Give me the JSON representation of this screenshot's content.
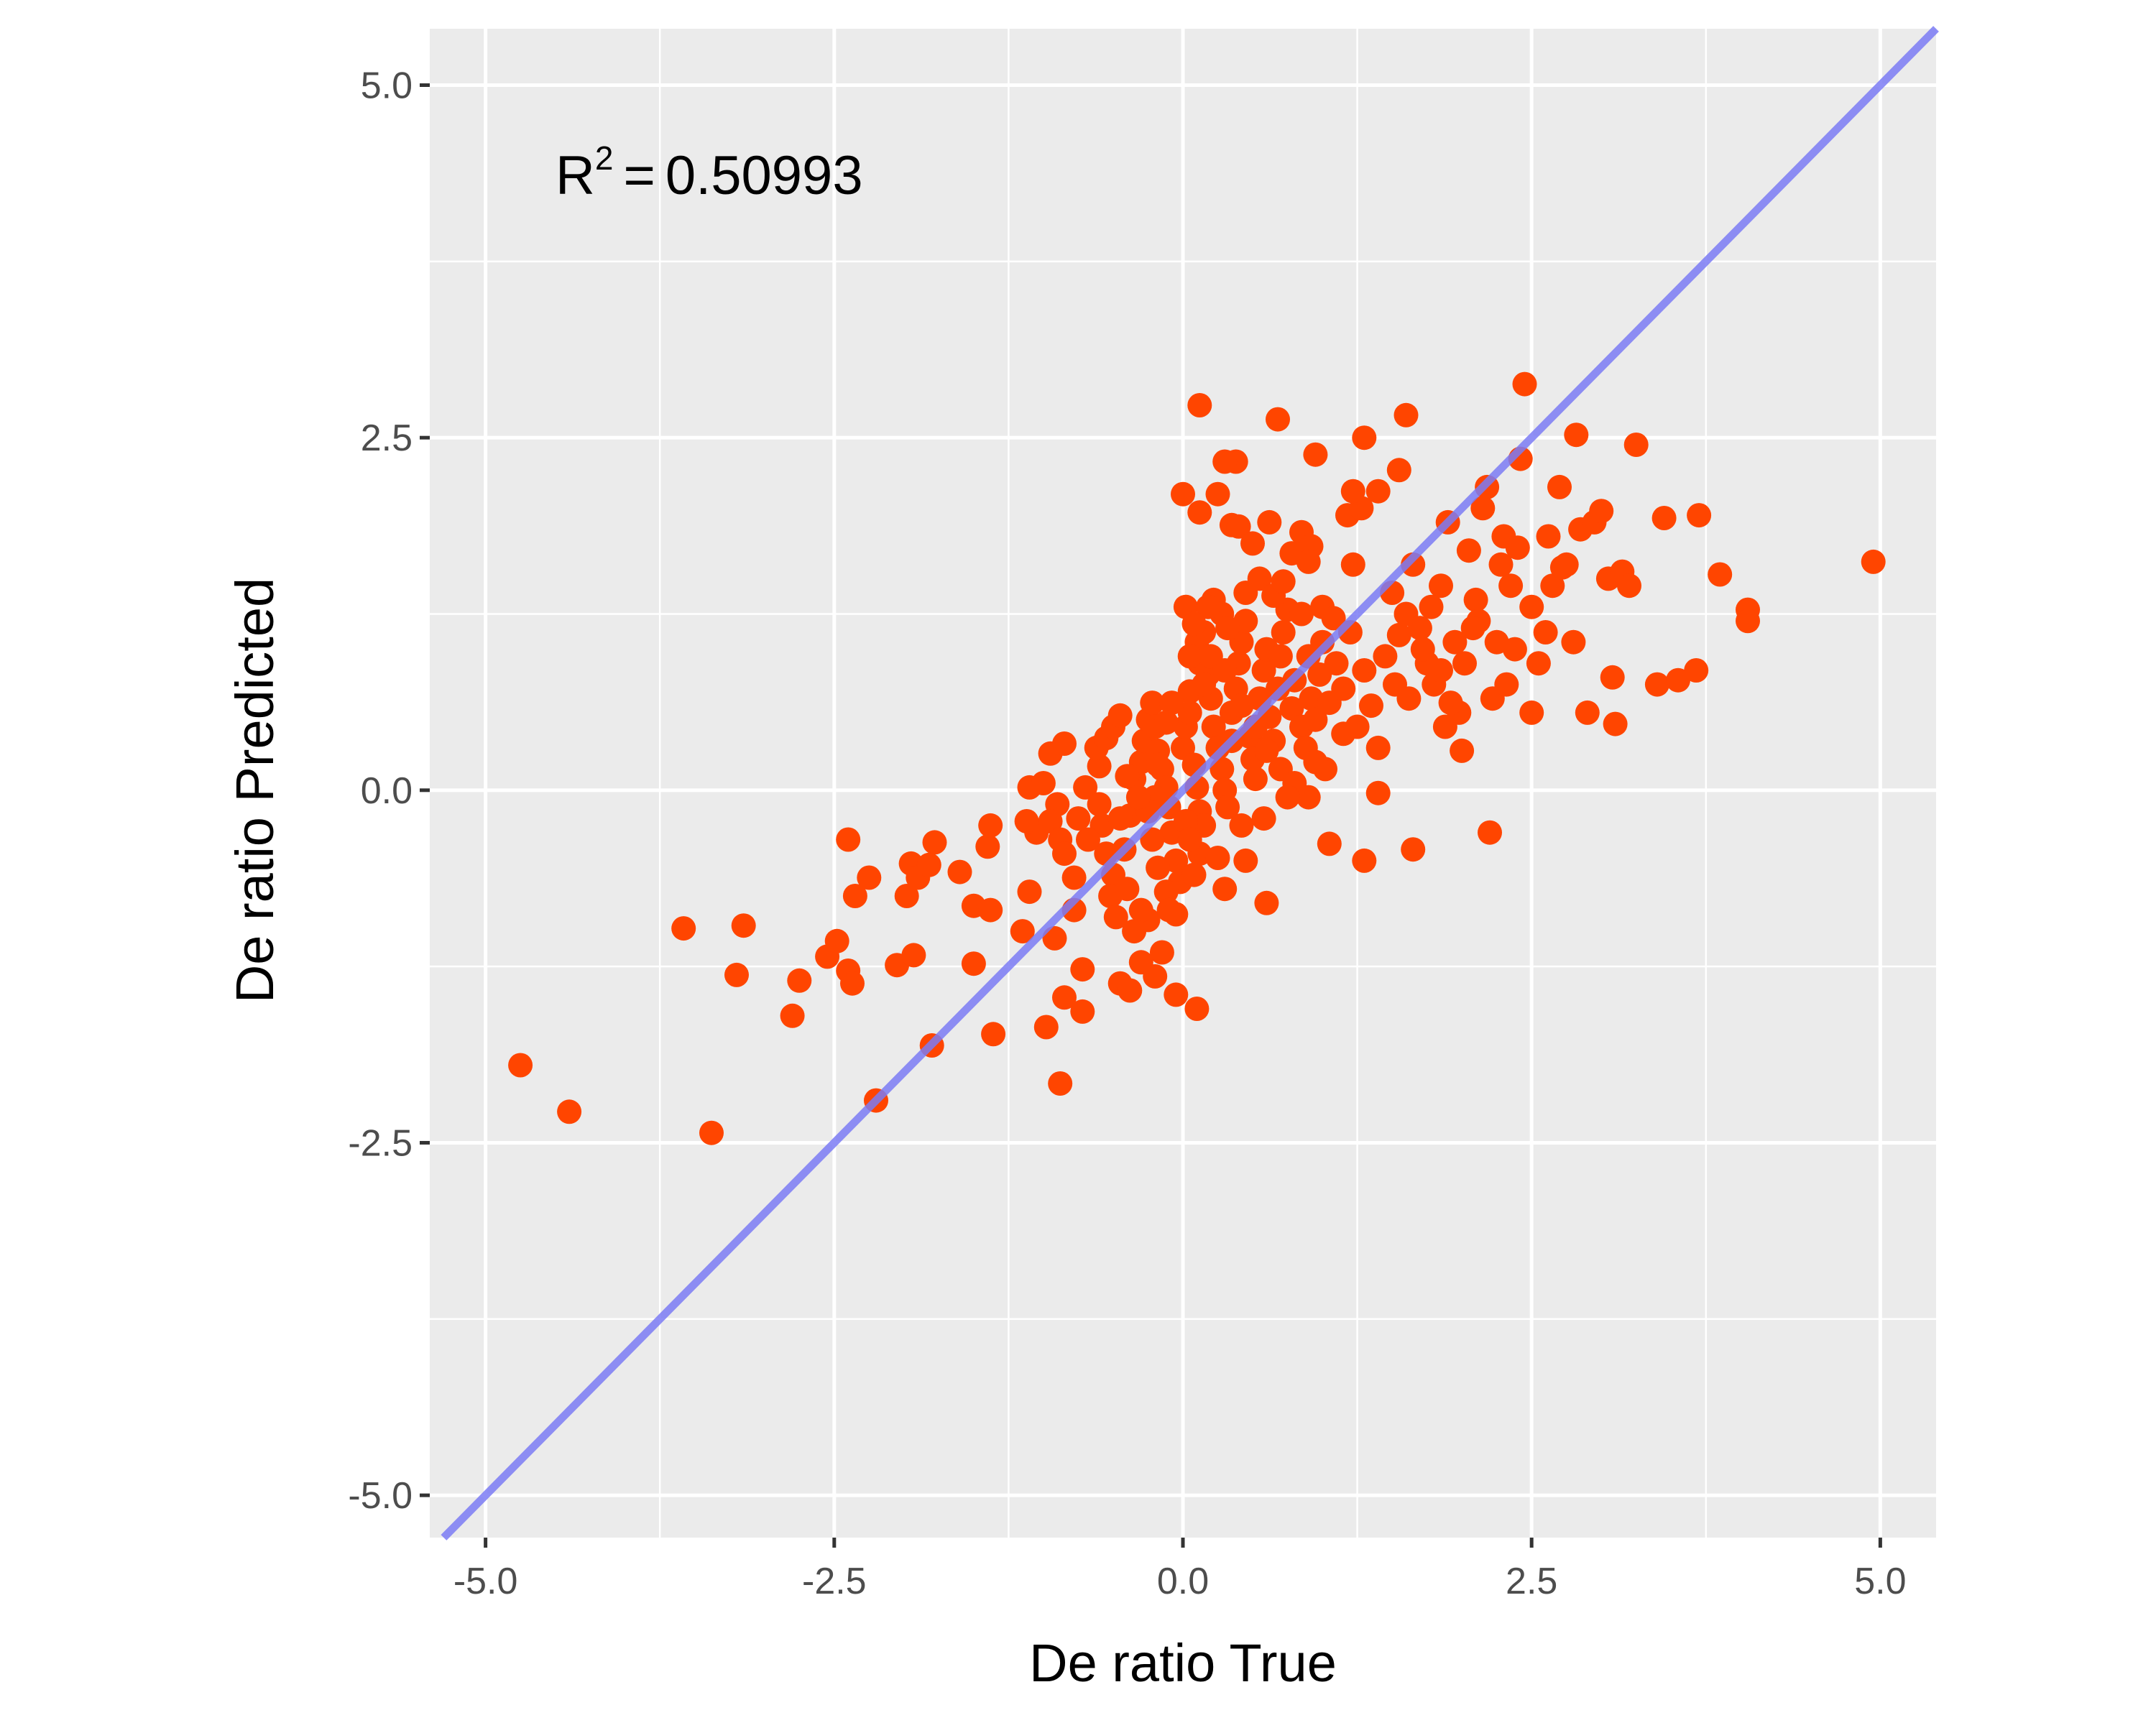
{
  "chart_data": {
    "type": "scatter",
    "title": "",
    "xlabel": "De ratio True",
    "ylabel": "De ratio Predicted",
    "xlim": [
      -5.4,
      5.4
    ],
    "ylim": [
      -5.3,
      5.4
    ],
    "x_ticks": [
      -5.0,
      -2.5,
      0.0,
      2.5,
      5.0
    ],
    "y_ticks": [
      -5.0,
      -2.5,
      0.0,
      2.5,
      5.0
    ],
    "x_tick_labels": [
      "-5.0",
      "-2.5",
      "0.0",
      "2.5",
      "5.0"
    ],
    "y_tick_labels": [
      "-5.0",
      "-2.5",
      "0.0",
      "2.5",
      "5.0"
    ],
    "grid": true,
    "panel_background": "#ebebeb",
    "grid_color": "#ffffff",
    "point_color": "#ff4500",
    "line_color": "#7b7bf4",
    "annotation": {
      "base": "R",
      "superscript": "2",
      "equals": "=",
      "value": "0.50993"
    },
    "reference_line": {
      "type": "identity",
      "slope": 1,
      "intercept": 0
    },
    "points": [
      [
        -4.75,
        -1.95
      ],
      [
        -4.4,
        -2.28
      ],
      [
        -3.38,
        -2.43
      ],
      [
        -3.58,
        -0.98
      ],
      [
        -3.15,
        -0.96
      ],
      [
        -3.2,
        -1.31
      ],
      [
        -2.75,
        -1.35
      ],
      [
        -2.8,
        -1.6
      ],
      [
        -2.55,
        -1.18
      ],
      [
        -2.48,
        -1.07
      ],
      [
        -2.4,
        -1.28
      ],
      [
        -2.37,
        -1.37
      ],
      [
        -2.2,
        -2.2
      ],
      [
        -2.35,
        -0.75
      ],
      [
        -2.25,
        -0.62
      ],
      [
        -2.4,
        -0.35
      ],
      [
        -2.05,
        -1.24
      ],
      [
        -1.93,
        -1.17
      ],
      [
        -1.98,
        -0.75
      ],
      [
        -1.95,
        -0.52
      ],
      [
        -1.9,
        -0.62
      ],
      [
        -1.78,
        -0.37
      ],
      [
        -1.82,
        -0.53
      ],
      [
        -1.6,
        -0.58
      ],
      [
        -1.5,
        -0.82
      ],
      [
        -1.38,
        -0.85
      ],
      [
        -1.4,
        -0.4
      ],
      [
        -1.38,
        -0.25
      ],
      [
        -1.5,
        -1.23
      ],
      [
        -1.36,
        -1.73
      ],
      [
        -1.8,
        -1.81
      ],
      [
        -1.15,
        -1.0
      ],
      [
        -1.1,
        -0.72
      ],
      [
        -1.05,
        -0.3
      ],
      [
        -1.12,
        -0.22
      ],
      [
        -1.1,
        0.02
      ],
      [
        -1.0,
        0.05
      ],
      [
        -0.9,
        -0.1
      ],
      [
        -0.95,
        -0.22
      ],
      [
        -0.88,
        -0.35
      ],
      [
        -0.85,
        -0.45
      ],
      [
        -0.92,
        -1.05
      ],
      [
        -0.85,
        -1.47
      ],
      [
        -0.98,
        -1.68
      ],
      [
        -0.88,
        -2.08
      ],
      [
        -0.72,
        -1.27
      ],
      [
        -0.72,
        -1.57
      ],
      [
        -0.78,
        -0.85
      ],
      [
        -0.78,
        -0.62
      ],
      [
        -0.95,
        0.26
      ],
      [
        -0.85,
        0.33
      ],
      [
        -0.7,
        0.02
      ],
      [
        -0.6,
        0.17
      ],
      [
        -0.62,
        0.3
      ],
      [
        -0.55,
        0.37
      ],
      [
        -0.5,
        0.45
      ],
      [
        -0.45,
        0.53
      ],
      [
        -0.58,
        -0.25
      ],
      [
        -0.55,
        -0.45
      ],
      [
        -0.5,
        -0.6
      ],
      [
        -0.52,
        -0.75
      ],
      [
        -0.48,
        -0.9
      ],
      [
        -0.42,
        -0.42
      ],
      [
        -0.38,
        -0.18
      ],
      [
        -0.35,
        0.08
      ],
      [
        -0.3,
        0.2
      ],
      [
        -0.28,
        0.35
      ],
      [
        -0.25,
        0.5
      ],
      [
        -0.22,
        0.62
      ],
      [
        -0.2,
        0.45
      ],
      [
        -0.18,
        0.28
      ],
      [
        -0.15,
        0.15
      ],
      [
        -0.12,
        0.02
      ],
      [
        -0.1,
        -0.12
      ],
      [
        -0.08,
        -0.3
      ],
      [
        -0.05,
        -0.5
      ],
      [
        -0.02,
        -0.65
      ],
      [
        -0.05,
        -0.88
      ],
      [
        -0.12,
        -0.72
      ],
      [
        -0.18,
        -0.55
      ],
      [
        -0.22,
        -0.35
      ],
      [
        -0.25,
        -0.92
      ],
      [
        -0.3,
        -0.85
      ],
      [
        -0.35,
        -1.0
      ],
      [
        -0.3,
        -1.22
      ],
      [
        -0.2,
        -1.32
      ],
      [
        -0.45,
        -1.37
      ],
      [
        -0.38,
        -1.42
      ],
      [
        -0.4,
        -0.7
      ],
      [
        -0.45,
        -0.2
      ],
      [
        0.0,
        0.3
      ],
      [
        0.02,
        0.45
      ],
      [
        0.05,
        0.55
      ],
      [
        0.05,
        0.7
      ],
      [
        0.08,
        0.18
      ],
      [
        0.1,
        0.02
      ],
      [
        0.12,
        -0.15
      ],
      [
        0.15,
        -0.25
      ],
      [
        0.12,
        -0.45
      ],
      [
        0.08,
        -0.6
      ],
      [
        0.1,
        1.05
      ],
      [
        0.12,
        0.9
      ],
      [
        0.15,
        1.12
      ],
      [
        0.02,
        1.3
      ],
      [
        0.05,
        0.95
      ],
      [
        0.18,
        0.82
      ],
      [
        0.2,
        0.65
      ],
      [
        0.22,
        0.45
      ],
      [
        0.25,
        0.3
      ],
      [
        0.28,
        0.15
      ],
      [
        0.3,
        0.0
      ],
      [
        0.32,
        -0.12
      ],
      [
        0.35,
        0.55
      ],
      [
        0.38,
        0.72
      ],
      [
        0.4,
        0.9
      ],
      [
        0.42,
        1.05
      ],
      [
        0.45,
        1.2
      ],
      [
        0.48,
        0.38
      ],
      [
        0.5,
        0.22
      ],
      [
        0.52,
        0.08
      ],
      [
        0.55,
        0.65
      ],
      [
        0.58,
        0.85
      ],
      [
        0.6,
        1.0
      ],
      [
        0.62,
        0.52
      ],
      [
        0.65,
        0.35
      ],
      [
        0.68,
        0.72
      ],
      [
        0.7,
        0.95
      ],
      [
        0.72,
        1.12
      ],
      [
        0.75,
        1.28
      ],
      [
        0.78,
        0.58
      ],
      [
        0.8,
        0.78
      ],
      [
        0.85,
        0.45
      ],
      [
        0.88,
        0.3
      ],
      [
        0.9,
        0.95
      ],
      [
        0.92,
        0.65
      ],
      [
        0.95,
        0.5
      ],
      [
        0.98,
        0.82
      ],
      [
        1.0,
        1.05
      ],
      [
        1.02,
        0.15
      ],
      [
        1.05,
        0.62
      ],
      [
        1.1,
        0.9
      ],
      [
        1.15,
        0.72
      ],
      [
        1.2,
        1.12
      ],
      [
        1.25,
        0.45
      ],
      [
        1.3,
        0.85
      ],
      [
        1.35,
        0.6
      ],
      [
        1.4,
        0.3
      ],
      [
        0.12,
        2.73
      ],
      [
        0.68,
        2.63
      ],
      [
        0.38,
        2.33
      ],
      [
        0.3,
        2.33
      ],
      [
        0.25,
        2.1
      ],
      [
        0.0,
        2.1
      ],
      [
        0.12,
        1.97
      ],
      [
        0.35,
        1.88
      ],
      [
        0.4,
        1.87
      ],
      [
        0.5,
        1.75
      ],
      [
        0.62,
        1.9
      ],
      [
        0.78,
        1.68
      ],
      [
        0.85,
        1.83
      ],
      [
        0.92,
        1.73
      ],
      [
        0.9,
        1.62
      ],
      [
        0.95,
        2.38
      ],
      [
        1.18,
        1.95
      ],
      [
        1.28,
        2.0
      ],
      [
        1.22,
        2.12
      ],
      [
        1.3,
        2.5
      ],
      [
        1.22,
        1.6
      ],
      [
        1.4,
        2.12
      ],
      [
        1.55,
        2.27
      ],
      [
        1.6,
        2.66
      ],
      [
        1.55,
        1.1
      ],
      [
        1.5,
        1.4
      ],
      [
        1.6,
        1.25
      ],
      [
        1.65,
        1.6
      ],
      [
        1.7,
        1.15
      ],
      [
        1.75,
        0.9
      ],
      [
        1.8,
        0.75
      ],
      [
        1.85,
        1.45
      ],
      [
        1.9,
        1.9
      ],
      [
        1.95,
        1.05
      ],
      [
        1.98,
        0.55
      ],
      [
        2.0,
        0.28
      ],
      [
        2.05,
        1.7
      ],
      [
        2.1,
        1.35
      ],
      [
        2.12,
        1.2
      ],
      [
        2.15,
        2.0
      ],
      [
        2.18,
        2.15
      ],
      [
        2.22,
        0.65
      ],
      [
        2.25,
        1.05
      ],
      [
        2.28,
        1.6
      ],
      [
        2.3,
        1.8
      ],
      [
        2.35,
        1.45
      ],
      [
        2.4,
        1.72
      ],
      [
        2.45,
        2.88
      ],
      [
        2.42,
        2.35
      ],
      [
        2.5,
        1.3
      ],
      [
        2.5,
        0.55
      ],
      [
        2.55,
        0.9
      ],
      [
        2.6,
        1.12
      ],
      [
        2.65,
        1.45
      ],
      [
        2.7,
        2.15
      ],
      [
        2.75,
        1.6
      ],
      [
        2.8,
        1.05
      ],
      [
        2.82,
        2.52
      ],
      [
        2.85,
        1.85
      ],
      [
        2.9,
        0.55
      ],
      [
        2.95,
        1.9
      ],
      [
        3.0,
        1.98
      ],
      [
        3.05,
        1.5
      ],
      [
        3.08,
        0.8
      ],
      [
        3.1,
        0.47
      ],
      [
        3.15,
        1.55
      ],
      [
        3.2,
        1.45
      ],
      [
        3.25,
        2.45
      ],
      [
        3.45,
        1.93
      ],
      [
        3.4,
        0.75
      ],
      [
        3.55,
        0.78
      ],
      [
        3.68,
        0.85
      ],
      [
        3.7,
        1.95
      ],
      [
        3.85,
        1.53
      ],
      [
        4.05,
        1.28
      ],
      [
        4.05,
        1.2
      ],
      [
        4.95,
        1.62
      ],
      [
        2.2,
        -0.3
      ],
      [
        1.65,
        -0.42
      ],
      [
        1.4,
        -0.02
      ],
      [
        1.3,
        -0.5
      ],
      [
        1.05,
        -0.38
      ],
      [
        0.6,
        -0.8
      ],
      [
        0.45,
        -0.5
      ],
      [
        0.3,
        -0.7
      ],
      [
        0.25,
        -0.48
      ],
      [
        0.1,
        -1.55
      ],
      [
        -0.1,
        -0.85
      ],
      [
        -0.15,
        -1.15
      ],
      [
        -0.05,
        -1.45
      ],
      [
        0.22,
        1.35
      ],
      [
        0.28,
        1.25
      ],
      [
        0.32,
        1.15
      ],
      [
        0.45,
        1.4
      ],
      [
        0.55,
        1.5
      ],
      [
        0.65,
        1.38
      ],
      [
        0.72,
        1.48
      ],
      [
        0.85,
        1.25
      ],
      [
        1.0,
        1.3
      ],
      [
        1.08,
        1.22
      ],
      [
        0.18,
        1.3
      ],
      [
        0.08,
        1.18
      ],
      [
        0.15,
        0.75
      ],
      [
        -0.08,
        0.62
      ],
      [
        -0.12,
        0.48
      ],
      [
        -0.18,
        0.18
      ],
      [
        -0.2,
        -0.05
      ],
      [
        -0.25,
        -0.15
      ],
      [
        0.02,
        -0.22
      ],
      [
        0.05,
        -0.35
      ],
      [
        0.2,
        0.95
      ],
      [
        0.3,
        0.85
      ],
      [
        0.42,
        0.6
      ],
      [
        0.52,
        0.45
      ],
      [
        0.6,
        0.28
      ],
      [
        0.7,
        0.15
      ],
      [
        0.8,
        0.05
      ],
      [
        0.9,
        -0.05
      ],
      [
        1.88,
        0.45
      ],
      [
        1.92,
        0.62
      ],
      [
        2.02,
        0.9
      ],
      [
        2.08,
        1.15
      ],
      [
        1.72,
        1.0
      ],
      [
        1.78,
        1.3
      ],
      [
        1.45,
        0.95
      ],
      [
        1.52,
        0.75
      ],
      [
        2.62,
        1.8
      ],
      [
        2.72,
        1.58
      ],
      [
        2.32,
        0.75
      ],
      [
        2.38,
        1.0
      ],
      [
        1.85,
        0.85
      ],
      [
        1.62,
        0.65
      ],
      [
        1.15,
        0.4
      ],
      [
        0.95,
        0.2
      ],
      [
        0.75,
        -0.05
      ],
      [
        0.58,
        -0.2
      ],
      [
        0.42,
        -0.25
      ],
      [
        0.35,
        0.35
      ],
      [
        -0.4,
        0.1
      ],
      [
        -0.32,
        -0.05
      ],
      [
        -0.6,
        -0.1
      ],
      [
        -0.68,
        -0.35
      ],
      [
        -0.75,
        -0.2
      ]
    ]
  }
}
